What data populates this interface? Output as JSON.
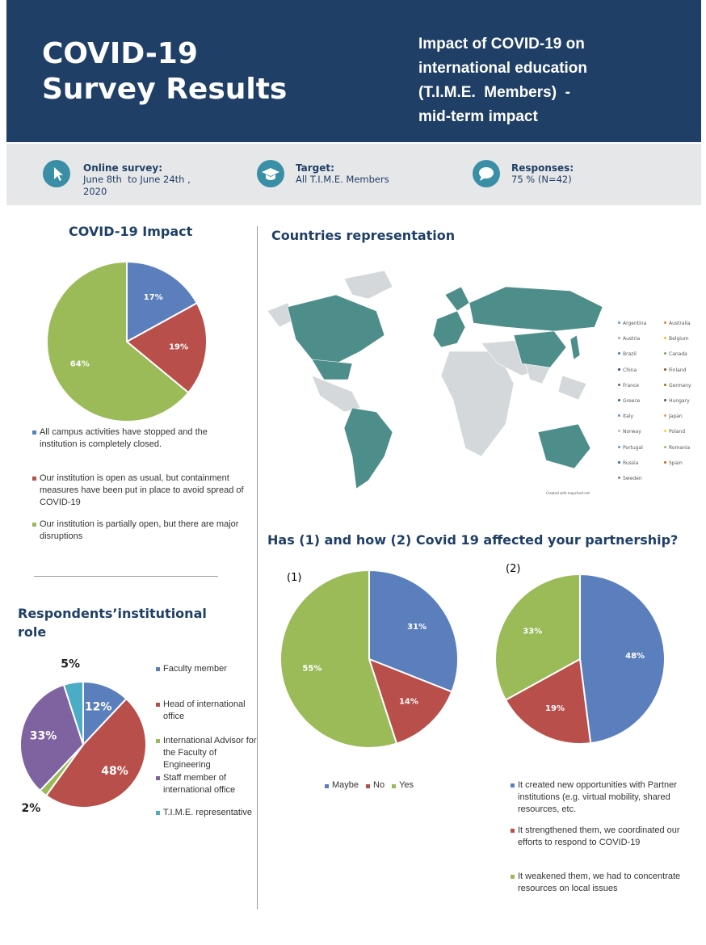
{
  "header": {
    "title_lines": [
      "COVID-19",
      "Survey Results"
    ],
    "subtitle_lines": [
      "Impact of COVID-19 on",
      "international education",
      "(T.I.M.E.  Members)  -",
      "mid-term impact"
    ]
  },
  "info": [
    {
      "label": "Online survey:",
      "lines": [
        "June 8th  to June 24th ,",
        "2020"
      ]
    },
    {
      "label": "Target:",
      "lines": [
        "All T.I.M.E. Members"
      ]
    },
    {
      "label": "Responses:",
      "lines": [
        "75 % (N=42)"
      ]
    }
  ],
  "map": {
    "title": "Countries representation",
    "countries": [
      "Argentina",
      "Australia",
      "Austria",
      "Belgium",
      "Brazil",
      "Canada",
      "China",
      "Finland",
      "France",
      "Germany",
      "Greece",
      "Hungary",
      "Italy",
      "Japan",
      "Norway",
      "Poland",
      "Portugal",
      "Romania",
      "Russia",
      "Spain",
      "Sweden"
    ],
    "credit": "Created with mapchart.net"
  },
  "partnership_title": "Has (1) and how (2) Covid 19 affected your partnership?",
  "chart_data": [
    {
      "type": "pie",
      "title": "COVID-19 Impact",
      "categories": [
        "All campus activities have stopped and the institution is completely closed.",
        "Our institution is open as usual, but containment measures have been put in place to avoid spread of COVID-19",
        "Our institution is partially open, but there are major disruptions"
      ],
      "values": [
        17,
        19,
        64
      ],
      "value_labels": [
        "17%",
        "19%",
        "64%"
      ],
      "colors": [
        "#5b7fbc",
        "#b94f4b",
        "#9bbb59"
      ]
    },
    {
      "type": "pie",
      "title": "Respondents’institutional role",
      "categories": [
        "Faculty member",
        "Head of international office",
        "International Advisor for the Faculty of Engineering",
        "Staff member of international office",
        "T.I.M.E. representative"
      ],
      "values": [
        12,
        48,
        2,
        33,
        5
      ],
      "value_labels": [
        "12%",
        "48%",
        "2%",
        "33%",
        "5%"
      ],
      "colors": [
        "#5b7fbc",
        "#b94f4b",
        "#9bbb59",
        "#7f63a1",
        "#4bacc6"
      ]
    },
    {
      "type": "pie",
      "label": "(1)",
      "categories": [
        "Maybe",
        "No",
        "Yes"
      ],
      "values": [
        31,
        14,
        55
      ],
      "value_labels": [
        "31%",
        "14%",
        "55%"
      ],
      "colors": [
        "#5b7fbc",
        "#b94f4b",
        "#9bbb59"
      ]
    },
    {
      "type": "pie",
      "label": "(2)",
      "categories": [
        "It created new opportunities with Partner institutions (e.g. virtual mobility, shared resources, etc.",
        "It strengthened them, we coordinated our efforts to respond to COVID-19",
        "It weakened them, we had to concentrate resources on local issues"
      ],
      "values": [
        48,
        19,
        33
      ],
      "value_labels": [
        "48%",
        "19%",
        "33%"
      ],
      "colors": [
        "#5b7fbc",
        "#b94f4b",
        "#9bbb59"
      ]
    }
  ]
}
